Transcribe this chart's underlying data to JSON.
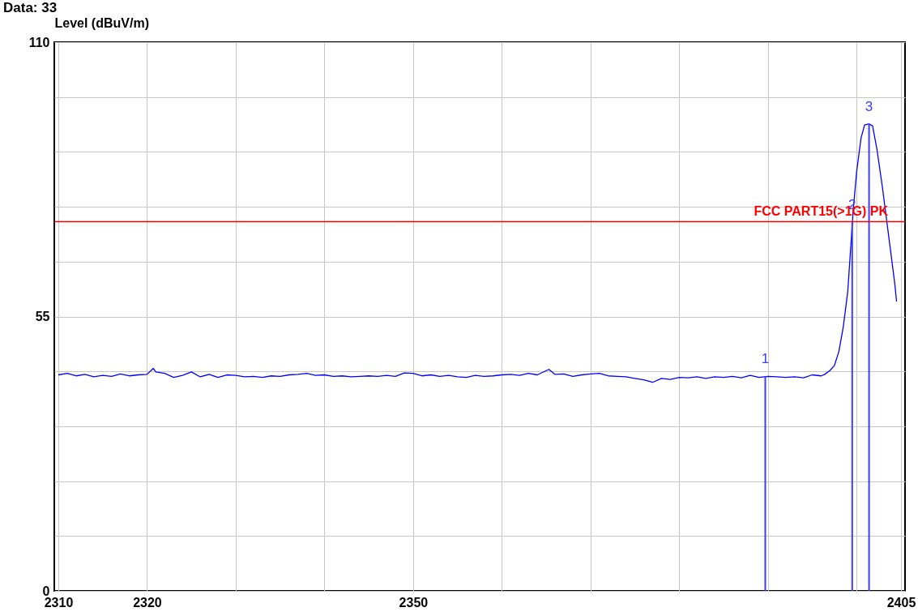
{
  "chart_data": {
    "type": "line",
    "ylabel": "Level (dBuV/m)",
    "annotations": [
      "Data: 33",
      {
        "text": "1",
        "x": 2389.7,
        "y": 43
      },
      {
        "text": "2",
        "x": 2399.5,
        "y": 74
      },
      {
        "text": "3",
        "x": 2401.4,
        "y": 93.6
      }
    ],
    "xlim": [
      2310,
      2405
    ],
    "xticks": [
      2310,
      2320,
      {
        "value": 2330,
        "label": null
      },
      {
        "value": 2340,
        "label": null
      },
      2350,
      {
        "value": 2360,
        "label": null
      },
      {
        "value": 2370,
        "label": null
      },
      {
        "value": 2380,
        "label": null
      },
      {
        "value": 2390,
        "label": null
      },
      {
        "value": 2400,
        "label": null
      },
      2405
    ],
    "ylim": [
      0,
      110
    ],
    "yticks": [
      0,
      {
        "value": 11,
        "label": null
      },
      {
        "value": 22,
        "label": null
      },
      {
        "value": 33,
        "label": null
      },
      {
        "value": 44,
        "label": null
      },
      55,
      {
        "value": 66,
        "label": null
      },
      {
        "value": 77,
        "label": null
      },
      {
        "value": 88,
        "label": null
      },
      {
        "value": 99,
        "label": null
      },
      110
    ],
    "grid": true,
    "ref_lines": [
      {
        "axis": "y",
        "value": 74,
        "label": "FCC PART15(>1G) PK",
        "color": "#ff0000"
      }
    ],
    "series": [
      {
        "color": "#0000ff",
        "x": [
          2310,
          2311,
          2312,
          2313,
          2314,
          2315,
          2316,
          2317,
          2318,
          2319,
          2320,
          2320.7,
          2321,
          2322,
          2323,
          2324,
          2325,
          2326,
          2327,
          2328,
          2329,
          2330,
          2331,
          2332,
          2333,
          2334,
          2335,
          2336,
          2337,
          2338,
          2339,
          2340,
          2341,
          2342,
          2343,
          2344,
          2345,
          2346,
          2347,
          2348,
          2349,
          2350,
          2351,
          2352,
          2353,
          2354,
          2355,
          2356,
          2357,
          2358,
          2359,
          2360,
          2361,
          2362,
          2363,
          2364,
          2365.3,
          2366,
          2367,
          2368,
          2369,
          2370,
          2371,
          2372,
          2373,
          2374,
          2375,
          2376,
          2377,
          2378,
          2379,
          2380,
          2381,
          2382,
          2383,
          2384,
          2385,
          2386,
          2387,
          2388,
          2389,
          2390,
          2391,
          2392,
          2393,
          2394,
          2395,
          2396,
          2396.4,
          2397,
          2397.5,
          2398,
          2398.5,
          2399,
          2399.3,
          2399.6,
          2400,
          2400.5,
          2400.9,
          2401.4,
          2401.8,
          2402.3,
          2402.9,
          2403.6,
          2404.3,
          2404.5
        ],
        "values": [
          43.3,
          43.6,
          43.1,
          43.4,
          42.9,
          43.2,
          43.0,
          43.5,
          43.1,
          43.3,
          43.4,
          44.6,
          43.9,
          43.6,
          42.8,
          43.2,
          43.9,
          42.9,
          43.4,
          42.8,
          43.3,
          43.2,
          42.9,
          43.0,
          42.8,
          43.1,
          43.0,
          43.3,
          43.4,
          43.6,
          43.2,
          43.3,
          43.0,
          43.1,
          42.9,
          43.0,
          43.1,
          43.0,
          43.2,
          43.0,
          43.7,
          43.6,
          43.1,
          43.3,
          43.0,
          43.2,
          42.9,
          42.8,
          43.2,
          43.0,
          43.1,
          43.3,
          43.4,
          43.2,
          43.6,
          43.3,
          44.4,
          43.4,
          43.5,
          43.0,
          43.3,
          43.5,
          43.6,
          43.1,
          43.0,
          42.9,
          42.6,
          42.3,
          41.8,
          42.6,
          42.4,
          42.8,
          42.7,
          42.9,
          42.6,
          42.9,
          42.8,
          43.0,
          42.7,
          43.2,
          42.8,
          43.0,
          42.9,
          42.8,
          42.9,
          42.7,
          43.3,
          43.1,
          43.4,
          44.2,
          45.2,
          48,
          53,
          60,
          68,
          76,
          84,
          90.8,
          93.4,
          93.6,
          93.2,
          88.4,
          81,
          71.3,
          61.6,
          58
        ]
      },
      {
        "type": "bar",
        "color": "#3c3cff",
        "x": [
          2389.7,
          2399.5,
          2401.4
        ],
        "values": [
          43,
          74,
          93.6
        ]
      }
    ]
  }
}
